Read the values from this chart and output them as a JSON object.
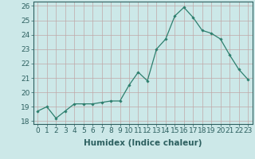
{
  "x": [
    0,
    1,
    2,
    3,
    4,
    5,
    6,
    7,
    8,
    9,
    10,
    11,
    12,
    13,
    14,
    15,
    16,
    17,
    18,
    19,
    20,
    21,
    22,
    23
  ],
  "y": [
    18.7,
    19.0,
    18.2,
    18.7,
    19.2,
    19.2,
    19.2,
    19.3,
    19.4,
    19.4,
    20.5,
    21.4,
    20.8,
    23.0,
    23.7,
    25.3,
    25.9,
    25.2,
    24.3,
    24.1,
    23.7,
    22.6,
    21.6,
    20.9
  ],
  "line_color": "#2d7f6e",
  "marker": "D",
  "marker_size": 1.8,
  "line_width": 0.9,
  "bg_color": "#cce8e8",
  "grid_color": "#c0a8a8",
  "xlabel": "Humidex (Indice chaleur)",
  "ylabel": "",
  "xlim": [
    -0.5,
    23.5
  ],
  "ylim": [
    17.8,
    26.3
  ],
  "yticks": [
    18,
    19,
    20,
    21,
    22,
    23,
    24,
    25,
    26
  ],
  "xticks": [
    0,
    1,
    2,
    3,
    4,
    5,
    6,
    7,
    8,
    9,
    10,
    11,
    12,
    13,
    14,
    15,
    16,
    17,
    18,
    19,
    20,
    21,
    22,
    23
  ],
  "tick_color": "#2d6060",
  "label_color": "#2d6060",
  "font_size": 6.5,
  "xlabel_fontsize": 7.5
}
